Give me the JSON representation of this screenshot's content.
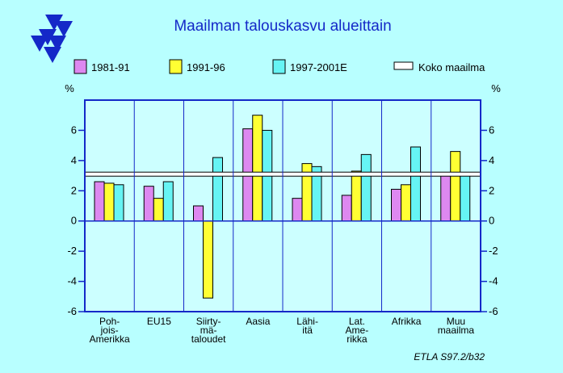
{
  "chart_data": {
    "type": "bar",
    "title": "Maailman talouskasvu alueittain",
    "ylabel_left": "%",
    "ylabel_right": "%",
    "ylim": [
      -6,
      8
    ],
    "yticks": [
      "6",
      "4",
      "2",
      "0",
      "-2",
      "-4",
      "-6"
    ],
    "categories": [
      [
        "Poh-",
        "jois-",
        "Amerikka"
      ],
      [
        "EU15"
      ],
      [
        "Siirty-",
        "mä-",
        "taloudet"
      ],
      [
        "Aasia"
      ],
      [
        "Lähi-",
        "itä"
      ],
      [
        "Lat.",
        "Ame-",
        "rikka"
      ],
      [
        "Afrikka"
      ],
      [
        "Muu",
        "maailma"
      ]
    ],
    "series": [
      {
        "name": "1981-91",
        "color": "#dd88f0",
        "values": [
          2.6,
          2.3,
          1.0,
          6.1,
          1.5,
          1.7,
          2.1,
          3.0
        ]
      },
      {
        "name": "1991-96",
        "color": "#ffff33",
        "values": [
          2.5,
          1.5,
          -5.1,
          7.0,
          3.8,
          3.3,
          2.4,
          4.6
        ]
      },
      {
        "name": "1997-2001E",
        "color": "#66f4f4",
        "values": [
          2.4,
          2.6,
          4.2,
          6.0,
          3.6,
          4.4,
          4.9,
          3.0
        ]
      }
    ],
    "reference_line": {
      "name": "Koko maailma",
      "value": 3.1
    },
    "legend_position": "top",
    "grid": false,
    "source": "ETLA S97.2/b32"
  },
  "colors": {
    "background": "#b8ffff",
    "plot_background": "#ccffff",
    "axis": "#1428c8",
    "title": "#1428c8",
    "logo": "#1428c8"
  }
}
